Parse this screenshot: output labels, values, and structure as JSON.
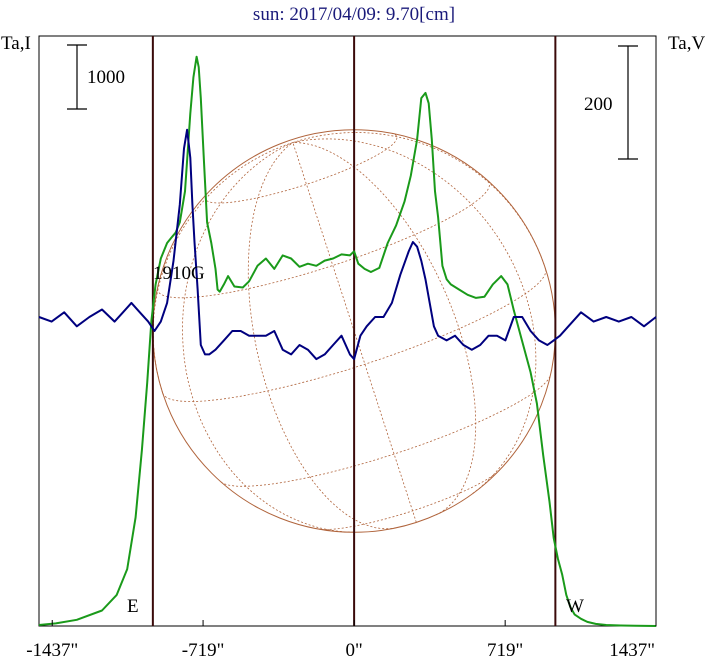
{
  "chart_data": {
    "type": "line",
    "title": "sun: 2017/04/09: 9.70[cm]",
    "left_axis_label": "Ta,I",
    "right_axis_label": "Ta,V",
    "left_scale_bar_label": "1000",
    "right_scale_bar_label": "200",
    "source_label": "1910G",
    "east_label": "E",
    "west_label": "W",
    "xlim": [
      -1500,
      1437
    ],
    "x_ticks": [
      {
        "value": -1437,
        "label": "-1437\""
      },
      {
        "value": -719,
        "label": "-719\""
      },
      {
        "value": 0,
        "label": "0\""
      },
      {
        "value": 719,
        "label": "719\""
      },
      {
        "value": 1437,
        "label": "1437\""
      }
    ],
    "limb_lines_x": [
      -958,
      958
    ],
    "center_line_x": 0,
    "disk_radius_arcsec": 958,
    "grid": false,
    "ta_i_range": [
      0,
      5700
    ],
    "ta_v_range": [
      -330,
      300
    ],
    "series": [
      {
        "color": "#1a9a1a",
        "x": [
          -1500,
          -1420,
          -1320,
          -1200,
          -1130,
          -1080,
          -1040,
          -1010,
          -985,
          -965,
          -945,
          -920,
          -890,
          -870,
          -850,
          -830,
          -805,
          -780,
          -765,
          -750,
          -740,
          -730,
          -715,
          -700,
          -680,
          -660,
          -650,
          -640,
          -620,
          -600,
          -570,
          -530,
          -500,
          -460,
          -420,
          -380,
          -340,
          -300,
          -260,
          -220,
          -180,
          -140,
          -100,
          -60,
          -20,
          0,
          20,
          50,
          80,
          120,
          160,
          200,
          240,
          270,
          300,
          320,
          340,
          355,
          370,
          385,
          400,
          420,
          440,
          460,
          500,
          540,
          580,
          620,
          660,
          700,
          730,
          760,
          800,
          840,
          870,
          900,
          930,
          950,
          970,
          990,
          1010,
          1030,
          1050,
          1080,
          1110,
          1150,
          1200,
          1270,
          1340,
          1437
        ],
        "values": [
          10,
          25,
          60,
          150,
          300,
          550,
          1050,
          1700,
          2350,
          2950,
          3300,
          3550,
          3700,
          3750,
          3800,
          3900,
          4200,
          4950,
          5300,
          5500,
          5400,
          5100,
          4500,
          3900,
          3700,
          3450,
          3250,
          3230,
          3300,
          3380,
          3280,
          3270,
          3330,
          3480,
          3550,
          3450,
          3580,
          3550,
          3470,
          3500,
          3480,
          3530,
          3550,
          3590,
          3580,
          3620,
          3500,
          3450,
          3420,
          3460,
          3700,
          3870,
          4100,
          4350,
          4700,
          5100,
          5150,
          5050,
          4700,
          4200,
          3950,
          3480,
          3350,
          3300,
          3250,
          3200,
          3170,
          3180,
          3300,
          3380,
          3300,
          3050,
          2750,
          2450,
          2150,
          1650,
          1200,
          850,
          650,
          500,
          300,
          180,
          110,
          70,
          40,
          20,
          10,
          5,
          3,
          0
        ]
      },
      {
        "color": "#00007f",
        "x": [
          -1500,
          -1440,
          -1380,
          -1320,
          -1260,
          -1200,
          -1140,
          -1100,
          -1060,
          -1020,
          -980,
          -950,
          -920,
          -890,
          -860,
          -830,
          -810,
          -795,
          -780,
          -770,
          -760,
          -745,
          -730,
          -710,
          -690,
          -660,
          -620,
          -580,
          -540,
          -500,
          -460,
          -420,
          -380,
          -340,
          -300,
          -260,
          -220,
          -180,
          -140,
          -100,
          -60,
          -20,
          0,
          30,
          60,
          100,
          140,
          180,
          220,
          260,
          280,
          300,
          320,
          340,
          360,
          380,
          400,
          440,
          480,
          520,
          560,
          600,
          640,
          680,
          720,
          760,
          800,
          840,
          880,
          920,
          950,
          980,
          1020,
          1080,
          1140,
          1200,
          1260,
          1320,
          1380,
          1437
        ],
        "values": [
          0,
          -5,
          5,
          -10,
          0,
          8,
          -5,
          5,
          15,
          5,
          -5,
          -15,
          -5,
          15,
          60,
          120,
          180,
          200,
          170,
          120,
          80,
          30,
          -30,
          -40,
          -40,
          -35,
          -25,
          -15,
          -15,
          -20,
          -20,
          -20,
          -15,
          -35,
          -40,
          -30,
          -35,
          -45,
          -40,
          -30,
          -20,
          -40,
          -45,
          -20,
          -10,
          0,
          0,
          15,
          45,
          70,
          80,
          75,
          60,
          40,
          15,
          -10,
          -20,
          -25,
          -20,
          -30,
          -35,
          -30,
          -20,
          -20,
          -25,
          0,
          0,
          -15,
          -25,
          -30,
          -25,
          -20,
          -10,
          5,
          -5,
          0,
          -5,
          0,
          -10,
          0
        ]
      }
    ]
  }
}
